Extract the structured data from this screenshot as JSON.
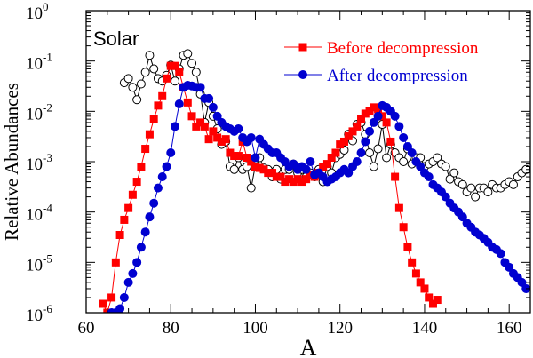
{
  "chart_data": {
    "type": "scatter",
    "xlabel": "A",
    "ylabel": "Relative Abundances",
    "xlim": [
      60,
      165
    ],
    "ylim": [
      1e-06,
      1
    ],
    "yscale": "log",
    "grid": false,
    "legend_position": "top-right",
    "annotation": "Solar",
    "x_ticks": [
      {
        "value": 60,
        "label": "60"
      },
      {
        "value": 80,
        "label": "80"
      },
      {
        "value": 100,
        "label": "100"
      },
      {
        "value": 120,
        "label": "120"
      },
      {
        "value": 140,
        "label": "140"
      },
      {
        "value": 160,
        "label": "160"
      }
    ],
    "y_ticks": [
      {
        "value": 1e-06,
        "base": "10",
        "exp": "-6"
      },
      {
        "value": 1e-05,
        "base": "10",
        "exp": "-5"
      },
      {
        "value": 0.0001,
        "base": "10",
        "exp": "-4"
      },
      {
        "value": 0.001,
        "base": "10",
        "exp": "-3"
      },
      {
        "value": 0.01,
        "base": "10",
        "exp": "-2"
      },
      {
        "value": 0.1,
        "base": "10",
        "exp": "-1"
      },
      {
        "value": 1,
        "base": "10",
        "exp": "0"
      }
    ],
    "series": [
      {
        "name": "",
        "color": "#000000",
        "marker": "open-circle",
        "x": [
          69,
          70,
          71,
          72,
          73,
          74,
          75,
          76,
          77,
          78,
          79,
          80,
          81,
          82,
          83,
          84,
          85,
          86,
          87,
          88,
          89,
          90,
          91,
          92,
          93,
          94,
          95,
          96,
          97,
          98,
          99,
          100,
          101,
          102,
          103,
          104,
          105,
          106,
          107,
          108,
          109,
          110,
          111,
          112,
          113,
          114,
          115,
          116,
          117,
          118,
          119,
          120,
          121,
          122,
          123,
          124,
          125,
          126,
          127,
          128,
          129,
          130,
          131,
          132,
          133,
          134,
          135,
          136,
          137,
          138,
          139,
          140,
          141,
          142,
          143,
          144,
          145,
          146,
          147,
          148,
          149,
          150,
          151,
          152,
          153,
          154,
          155,
          156,
          157,
          158,
          159,
          160,
          161,
          162,
          163,
          164
        ],
        "y": [
          0.037,
          0.045,
          0.03,
          0.017,
          0.035,
          0.06,
          0.13,
          0.07,
          0.045,
          0.04,
          0.052,
          0.083,
          0.04,
          0.07,
          0.13,
          0.14,
          0.09,
          0.06,
          0.022,
          0.006,
          0.015,
          0.008,
          0.0045,
          0.0022,
          0.0025,
          0.0008,
          0.0007,
          0.0012,
          0.0007,
          0.0008,
          0.0003,
          0.00085,
          0.0012,
          0.00075,
          0.0007,
          0.0005,
          0.0007,
          0.00045,
          0.0007,
          0.0007,
          0.0009,
          0.0006,
          0.0007,
          0.0005,
          0.0006,
          0.0005,
          0.0007,
          0.0004,
          0.0008,
          0.0006,
          0.0012,
          0.0014,
          0.0017,
          0.0035,
          0.0026,
          0.0055,
          0.006,
          0.0035,
          0.0015,
          0.0008,
          0.0018,
          0.0055,
          0.0012,
          0.0022,
          0.0015,
          0.0012,
          0.001,
          0.0018,
          0.0009,
          0.0012,
          0.0012,
          0.0008,
          0.0009,
          0.001,
          0.0012,
          0.0009,
          0.0008,
          0.00045,
          0.0006,
          0.0004,
          0.00035,
          0.00025,
          0.0003,
          0.0002,
          0.0003,
          0.0003,
          0.00025,
          0.00035,
          0.0003,
          0.0003,
          0.00035,
          0.0004,
          0.00035,
          0.0005,
          0.0006,
          0.0007
        ]
      },
      {
        "name": "Before decompression",
        "color": "#ff0000",
        "marker": "square",
        "x": [
          64,
          65,
          66,
          67,
          68,
          69,
          70,
          71,
          72,
          73,
          74,
          75,
          76,
          77,
          78,
          79,
          80,
          81,
          82,
          83,
          84,
          85,
          86,
          87,
          88,
          89,
          90,
          91,
          92,
          93,
          94,
          95,
          96,
          97,
          98,
          99,
          100,
          101,
          102,
          103,
          104,
          105,
          106,
          107,
          108,
          109,
          110,
          111,
          112,
          113,
          114,
          115,
          116,
          117,
          118,
          119,
          120,
          121,
          122,
          123,
          124,
          125,
          126,
          127,
          128,
          129,
          130,
          131,
          132,
          133,
          134,
          135,
          136,
          137,
          138,
          139,
          140,
          141,
          142,
          143
        ],
        "y": [
          1.5e-06,
          1e-06,
          2e-06,
          1e-05,
          3.5e-05,
          7e-05,
          0.00012,
          0.00022,
          0.0004,
          0.0008,
          0.0018,
          0.0035,
          0.007,
          0.013,
          0.02,
          0.045,
          0.08,
          0.08,
          0.06,
          0.03,
          0.015,
          0.008,
          0.005,
          0.006,
          0.005,
          0.0028,
          0.004,
          0.003,
          0.0025,
          0.0028,
          0.0015,
          0.0013,
          0.0013,
          0.0025,
          0.0012,
          0.001,
          0.0008,
          0.00075,
          0.0007,
          0.0006,
          0.0006,
          0.0005,
          0.0005,
          0.0004,
          0.00045,
          0.0004,
          0.00045,
          0.0004,
          0.00045,
          0.00055,
          0.0005,
          0.0006,
          0.0008,
          0.0009,
          0.0012,
          0.0015,
          0.0022,
          0.0025,
          0.0032,
          0.004,
          0.005,
          0.007,
          0.009,
          0.01,
          0.012,
          0.011,
          0.008,
          0.006,
          0.0025,
          0.0005,
          0.00012,
          5e-05,
          2e-05,
          1e-05,
          6e-06,
          4e-06,
          3e-06,
          2e-06,
          1.5e-06,
          1.8e-06
        ]
      },
      {
        "name": "After decompression",
        "color": "#0000d0",
        "marker": "circle",
        "x": [
          66,
          67,
          68,
          69,
          70,
          71,
          72,
          73,
          74,
          75,
          76,
          77,
          78,
          79,
          80,
          81,
          82,
          83,
          84,
          85,
          86,
          87,
          88,
          89,
          90,
          91,
          92,
          93,
          94,
          95,
          96,
          97,
          98,
          99,
          100,
          101,
          102,
          103,
          104,
          105,
          106,
          107,
          108,
          109,
          110,
          111,
          112,
          113,
          114,
          115,
          116,
          117,
          118,
          119,
          120,
          121,
          122,
          123,
          124,
          125,
          126,
          127,
          128,
          129,
          130,
          131,
          132,
          133,
          134,
          135,
          136,
          137,
          138,
          139,
          140,
          141,
          142,
          143,
          144,
          145,
          146,
          147,
          148,
          149,
          150,
          151,
          152,
          153,
          154,
          155,
          156,
          157,
          158,
          159,
          160,
          161,
          162,
          163,
          164
        ],
        "y": [
          1e-06,
          1e-06,
          1.2e-06,
          2e-06,
          4e-06,
          6e-06,
          1e-05,
          2e-05,
          4e-05,
          8e-05,
          0.00015,
          0.0003,
          0.0005,
          0.0008,
          0.0015,
          0.005,
          0.014,
          0.03,
          0.033,
          0.032,
          0.03,
          0.03,
          0.018,
          0.018,
          0.012,
          0.008,
          0.006,
          0.005,
          0.0045,
          0.004,
          0.0045,
          0.003,
          0.0025,
          0.003,
          0.0012,
          0.0028,
          0.0022,
          0.0018,
          0.0015,
          0.0015,
          0.0012,
          0.001,
          0.0008,
          0.0009,
          0.0007,
          0.0008,
          0.0007,
          0.001,
          0.00055,
          0.0006,
          0.0005,
          0.0004,
          0.00045,
          0.0005,
          0.0006,
          0.0007,
          0.0006,
          0.0008,
          0.001,
          0.0015,
          0.0025,
          0.004,
          0.006,
          0.008,
          0.013,
          0.012,
          0.01,
          0.008,
          0.005,
          0.003,
          0.002,
          0.0015,
          0.001,
          0.0008,
          0.0006,
          0.0005,
          0.00035,
          0.0003,
          0.00025,
          0.0002,
          0.00015,
          0.00012,
          0.0001,
          8e-05,
          6e-05,
          5e-05,
          4e-05,
          3.5e-05,
          3e-05,
          2.5e-05,
          2e-05,
          1.8e-05,
          1.5e-05,
          1e-05,
          8e-06,
          6e-06,
          5e-06,
          4e-06,
          3e-06
        ]
      }
    ]
  }
}
